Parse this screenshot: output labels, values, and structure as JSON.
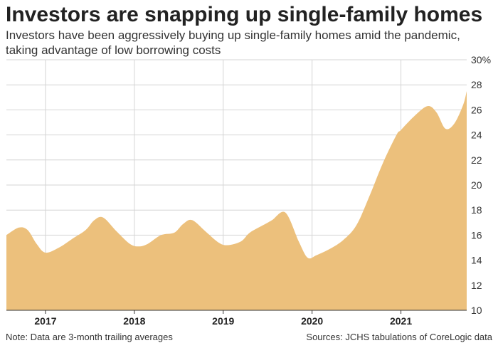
{
  "header": {
    "title": "Investors are snapping up single-family homes",
    "subtitle": "Investors have been aggressively buying up single-family homes amid the pandemic, taking advantage of low borrowing costs"
  },
  "footer": {
    "note": "Note: Data are 3-month trailing averages",
    "source": "Sources: JCHS tabulations of CoreLogic data"
  },
  "colors": {
    "area_fill": "#ecc07c",
    "grid": "#d4d4d4",
    "axis": "#333333"
  },
  "chart_data": {
    "type": "area",
    "title": "Investors are snapping up single-family homes",
    "subtitle": "Investors have been aggressively buying up single-family homes amid the pandemic, taking advantage of low borrowing costs",
    "xlabel": "",
    "ylabel": "",
    "x_tick_labels": [
      "2017",
      "2018",
      "2019",
      "2020",
      "2021"
    ],
    "y_tick_labels": [
      "30%",
      "28",
      "26",
      "24",
      "22",
      "20",
      "18",
      "16",
      "14",
      "12",
      "10"
    ],
    "y_ticks": [
      30,
      28,
      26,
      24,
      22,
      20,
      18,
      16,
      14,
      12,
      10
    ],
    "ylim": [
      10,
      30
    ],
    "xlim": [
      2016.56,
      2021.74
    ],
    "y_axis_position": "right",
    "grid": true,
    "legend": "none",
    "series": [
      {
        "x": [
          2016.56,
          2016.7,
          2016.8,
          2016.9,
          2017.0,
          2017.15,
          2017.3,
          2017.45,
          2017.55,
          2017.65,
          2017.8,
          2017.95,
          2018.05,
          2018.15,
          2018.3,
          2018.45,
          2018.55,
          2018.65,
          2018.8,
          2018.95,
          2019.05,
          2019.2,
          2019.3,
          2019.45,
          2019.55,
          2019.7,
          2019.85,
          2019.95,
          2020.05,
          2020.2,
          2020.35,
          2020.5,
          2020.65,
          2020.8,
          2020.95,
          2021.0,
          2021.15,
          2021.3,
          2021.4,
          2021.5,
          2021.6,
          2021.7,
          2021.74
        ],
        "values": [
          16.0,
          16.6,
          16.4,
          15.3,
          14.6,
          15.0,
          15.7,
          16.4,
          17.2,
          17.4,
          16.3,
          15.3,
          15.1,
          15.3,
          16.0,
          16.2,
          16.9,
          17.2,
          16.3,
          15.4,
          15.2,
          15.5,
          16.2,
          16.8,
          17.2,
          17.8,
          15.5,
          14.2,
          14.4,
          14.9,
          15.6,
          16.8,
          19.2,
          21.8,
          24.0,
          24.4,
          25.5,
          26.3,
          25.8,
          24.5,
          24.9,
          26.4,
          27.5
        ]
      }
    ]
  }
}
